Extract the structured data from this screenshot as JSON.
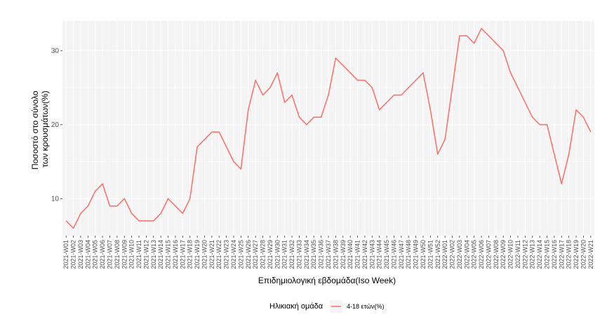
{
  "chart_data": {
    "type": "line",
    "xlabel": "Επιδημιολογική εβδομάδα(Iso Week)",
    "ylabel_lines": [
      "Ποσοστό στο σύνολο",
      "των κρουσμάτων(%)"
    ],
    "ylim": [
      5,
      34
    ],
    "yticks": [
      10,
      20,
      30
    ],
    "grid": true,
    "legend": {
      "title": "Ηλικιακή ομάδα",
      "position": "bottom"
    },
    "series_color": "#f8766d",
    "panel_color": "#f4f4f4",
    "categories": [
      "2021-W01",
      "2021-W02",
      "2021-W03",
      "2021-W04",
      "2021-W05",
      "2021-W06",
      "2021-W07",
      "2021-W08",
      "2021-W09",
      "2021-W10",
      "2021-W11",
      "2021-W12",
      "2021-W13",
      "2021-W14",
      "2021-W15",
      "2021-W16",
      "2021-W17",
      "2021-W18",
      "2021-W19",
      "2021-W20",
      "2021-W21",
      "2021-W22",
      "2021-W23",
      "2021-W24",
      "2021-W25",
      "2021-W26",
      "2021-W27",
      "2021-W28",
      "2021-W29",
      "2021-W30",
      "2021-W31",
      "2021-W32",
      "2021-W33",
      "2021-W34",
      "2021-W35",
      "2021-W36",
      "2021-W37",
      "2021-W38",
      "2021-W39",
      "2021-W40",
      "2021-W41",
      "2021-W42",
      "2021-W43",
      "2021-W44",
      "2021-W45",
      "2021-W46",
      "2021-W47",
      "2021-W48",
      "2021-W49",
      "2021-W50",
      "2021-W51",
      "2021-W52",
      "2022-W01",
      "2022-W02",
      "2022-W03",
      "2022-W04",
      "2022-W05",
      "2022-W06",
      "2022-W07",
      "2022-W08",
      "2022-W09",
      "2022-W10",
      "2022-W11",
      "2022-W12",
      "2022-W13",
      "2022-W14",
      "2022-W15",
      "2022-W16",
      "2022-W17",
      "2022-W18",
      "2022-W19",
      "2022-W20",
      "2022-W21"
    ],
    "series": [
      {
        "name": "4-18 ετών(%)",
        "values": [
          7,
          6,
          8,
          9,
          11,
          12,
          9,
          9,
          10,
          8,
          7,
          7,
          7,
          8,
          10,
          9,
          8,
          10,
          17,
          18,
          19,
          19,
          17,
          15,
          14,
          22,
          26,
          24,
          25,
          27,
          23,
          24,
          21,
          20,
          21,
          21,
          24,
          29,
          28,
          27,
          26,
          26,
          25,
          22,
          23,
          24,
          24,
          25,
          26,
          27,
          22,
          16,
          18,
          25,
          32,
          32,
          31,
          33,
          32,
          31,
          30,
          27,
          25,
          23,
          21,
          20,
          20,
          16,
          12,
          16,
          22,
          21,
          19
        ]
      }
    ]
  }
}
